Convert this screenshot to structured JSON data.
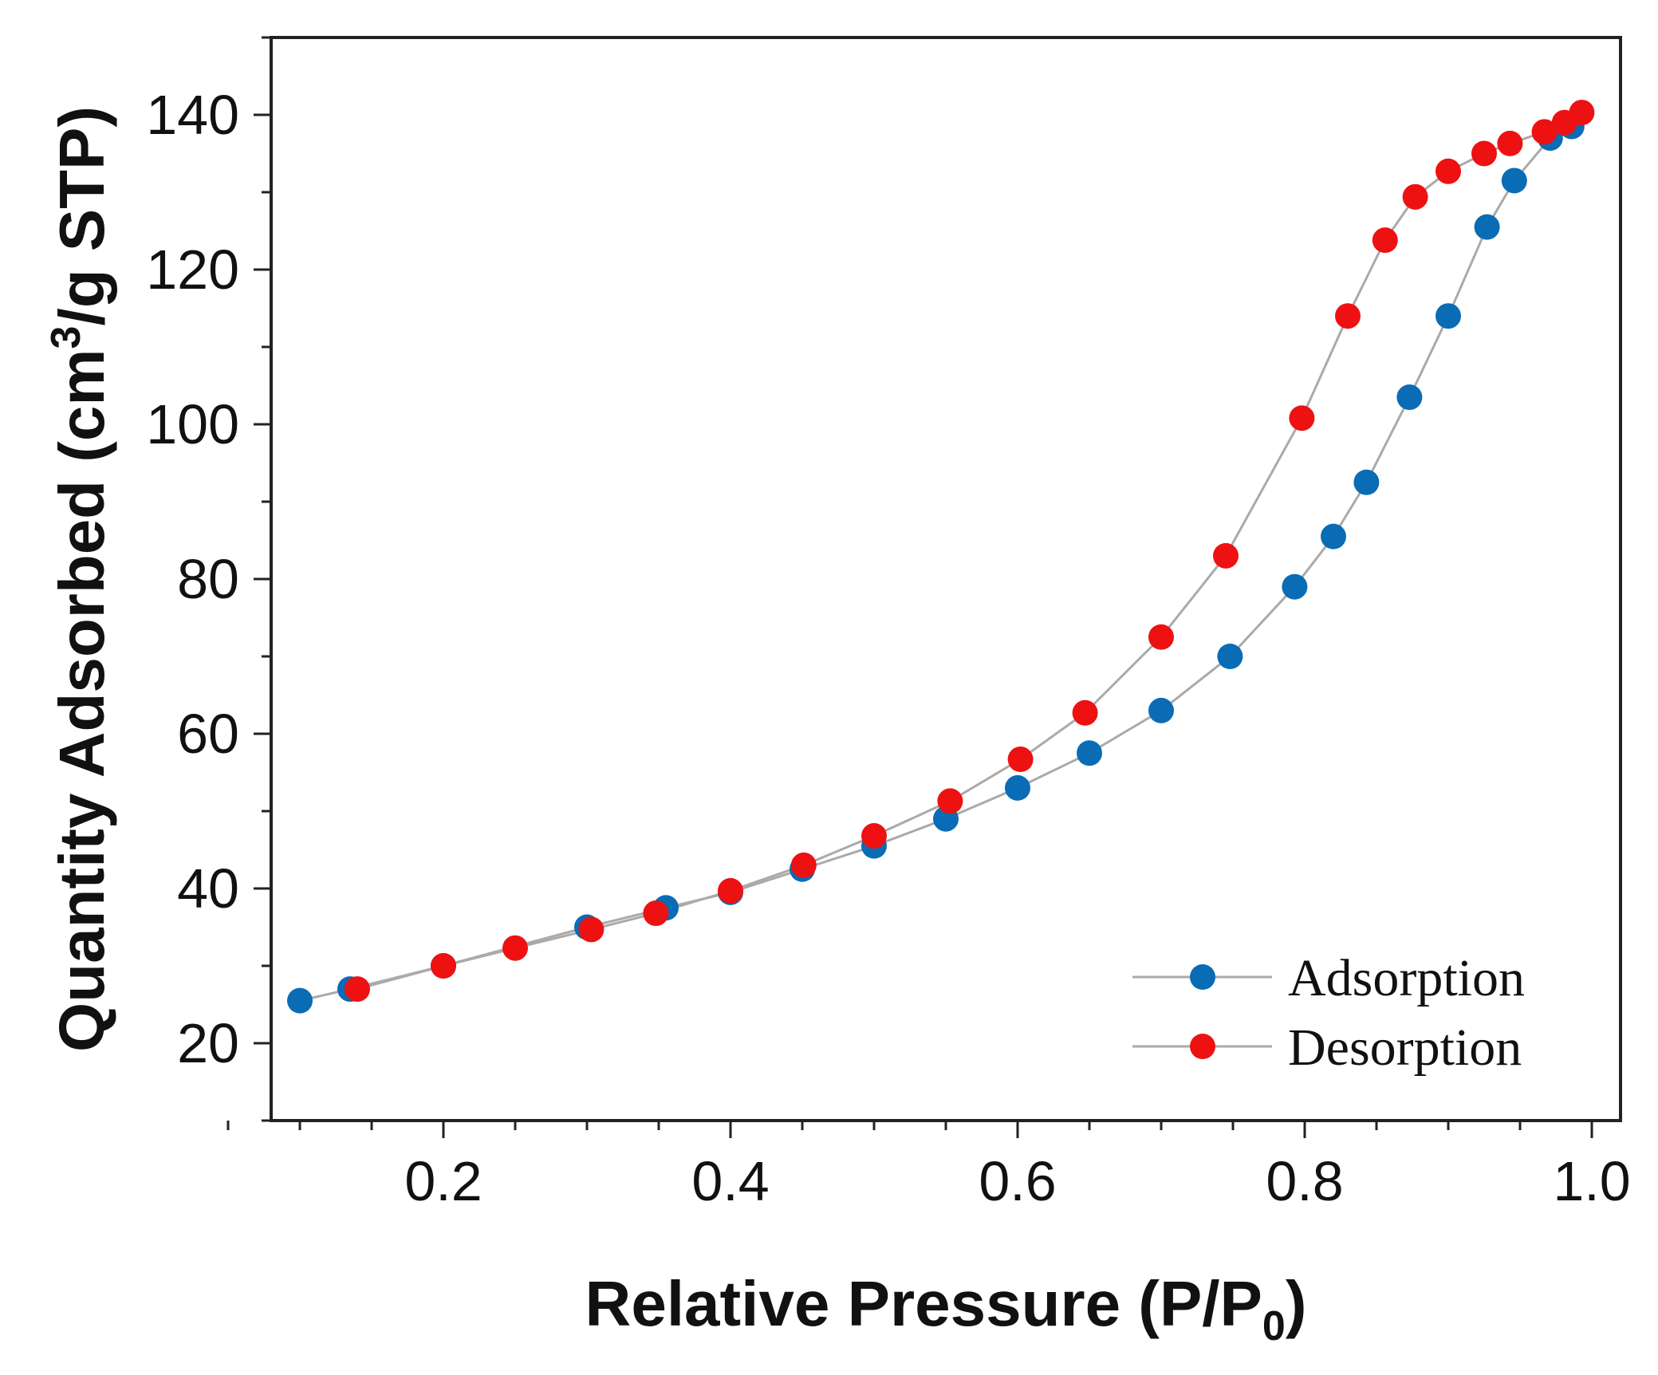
{
  "chart_data": {
    "type": "scatter",
    "title": "",
    "xlabel": "Relative Pressure (P/P",
    "xlabel_sub": "0",
    "xlabel_end": ")",
    "ylabel": "Quantity Adsorbed (cm",
    "ylabel_sup": "3",
    "ylabel_end": "/g STP)",
    "xlim": [
      0.08,
      1.02
    ],
    "ylim": [
      10,
      150
    ],
    "xticks": [
      0.2,
      0.4,
      0.6,
      0.8,
      1.0
    ],
    "xtick_labels": [
      "0.2",
      "0.4",
      "0.6",
      "0.8",
      "1.0"
    ],
    "yticks": [
      20,
      40,
      60,
      80,
      100,
      120,
      140
    ],
    "ytick_labels": [
      "20",
      "40",
      "60",
      "80",
      "100",
      "120",
      "140"
    ],
    "legend_position": "bottom-right",
    "series": [
      {
        "name": "Adsorption",
        "color": "#0a6cb5",
        "x": [
          0.1,
          0.135,
          0.2,
          0.3,
          0.355,
          0.4,
          0.45,
          0.5,
          0.55,
          0.6,
          0.65,
          0.7,
          0.748,
          0.793,
          0.82,
          0.843,
          0.873,
          0.9,
          0.927,
          0.946,
          0.971,
          0.986
        ],
        "y": [
          25.5,
          27,
          30,
          35,
          37.5,
          39.5,
          42.5,
          45.5,
          49,
          53,
          57.5,
          63,
          70,
          79,
          85.5,
          92.5,
          103.5,
          114,
          125.5,
          131.5,
          137,
          138.5
        ]
      },
      {
        "name": "Desorption",
        "color": "#ee1111",
        "x": [
          0.14,
          0.2,
          0.25,
          0.303,
          0.348,
          0.4,
          0.451,
          0.5,
          0.553,
          0.602,
          0.647,
          0.7,
          0.745,
          0.798,
          0.83,
          0.856,
          0.877,
          0.9,
          0.925,
          0.943,
          0.967,
          0.981,
          0.993
        ],
        "y": [
          27,
          30,
          32.3,
          34.7,
          36.8,
          39.7,
          43,
          46.8,
          51.3,
          56.7,
          62.7,
          72.5,
          83,
          100.8,
          114,
          123.8,
          129.4,
          132.7,
          135,
          136.3,
          137.8,
          139,
          140.3
        ]
      }
    ]
  },
  "legend": {
    "adsorption_label": "Adsorption",
    "desorption_label": "Desorption"
  },
  "style": {
    "line_color": "#aaaaaa",
    "axis_color": "#222222"
  }
}
